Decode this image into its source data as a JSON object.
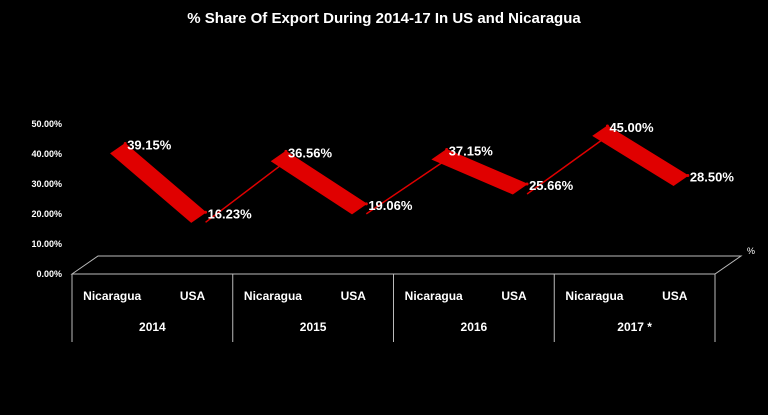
{
  "chart_data": {
    "type": "line",
    "title": "% Share Of Export During 2014-17 In US and Nicaragua",
    "series_label": "%",
    "ylim": [
      0,
      50
    ],
    "y_ticks": [
      "0.00%",
      "10.00%",
      "20.00%",
      "30.00%",
      "40.00%",
      "50.00%"
    ],
    "categories": [
      {
        "group": "2014",
        "label": "Nicaragua"
      },
      {
        "group": "2014",
        "label": "USA"
      },
      {
        "group": "2015",
        "label": "Nicaragua"
      },
      {
        "group": "2015",
        "label": "USA"
      },
      {
        "group": "2016",
        "label": "Nicaragua"
      },
      {
        "group": "2016",
        "label": "USA"
      },
      {
        "group": "2017 *",
        "label": "Nicaragua"
      },
      {
        "group": "2017 *",
        "label": "USA"
      }
    ],
    "groups": [
      "2014",
      "2015",
      "2016",
      "2017 *"
    ],
    "values": [
      39.15,
      16.23,
      36.56,
      19.06,
      37.15,
      25.66,
      45.0,
      28.5
    ],
    "data_labels": [
      "39.15%",
      "16.23%",
      "36.56%",
      "19.06%",
      "37.15%",
      "25.66%",
      "45.00%",
      "28.50%"
    ],
    "grid": false,
    "legend": "none",
    "colors": {
      "line": "#e00000",
      "background": "#000000",
      "text": "#ffffff",
      "axis": "#bbbbbb"
    }
  }
}
